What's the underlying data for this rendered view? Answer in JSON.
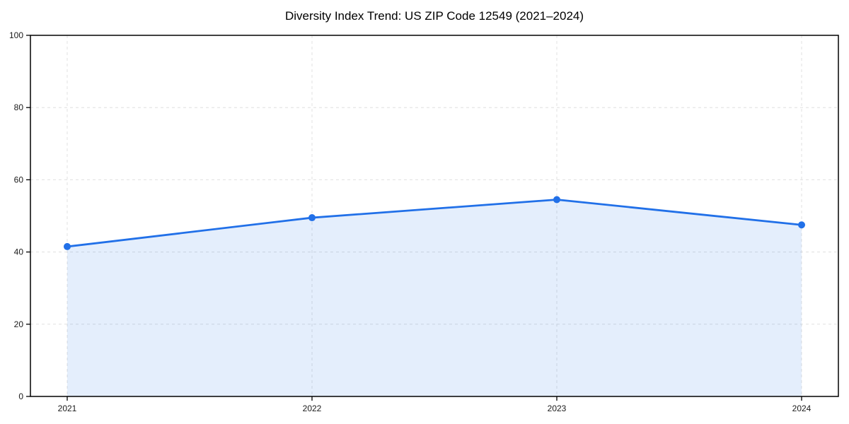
{
  "chart_data": {
    "type": "area",
    "title": "Diversity Index Trend: US ZIP Code 12549 (2021–2024)",
    "categories": [
      "2021",
      "2022",
      "2023",
      "2024"
    ],
    "values": [
      41.5,
      49.5,
      54.5,
      47.5
    ],
    "xlabel": "",
    "ylabel": "",
    "ylim": [
      0,
      100
    ],
    "yticks": [
      0,
      20,
      40,
      60,
      80,
      100
    ],
    "grid": true,
    "grid_style": "dashed",
    "legend_position": "none",
    "marker": "circle",
    "colors": {
      "line": "#2170e8",
      "marker": "#2170e8",
      "fill": "rgba(33, 112, 232, 0.12)",
      "grid": "#e0e0e0",
      "spine": "#000000",
      "tick_text": "#1a1a1a",
      "title_text": "#000000",
      "background": "#ffffff"
    }
  }
}
